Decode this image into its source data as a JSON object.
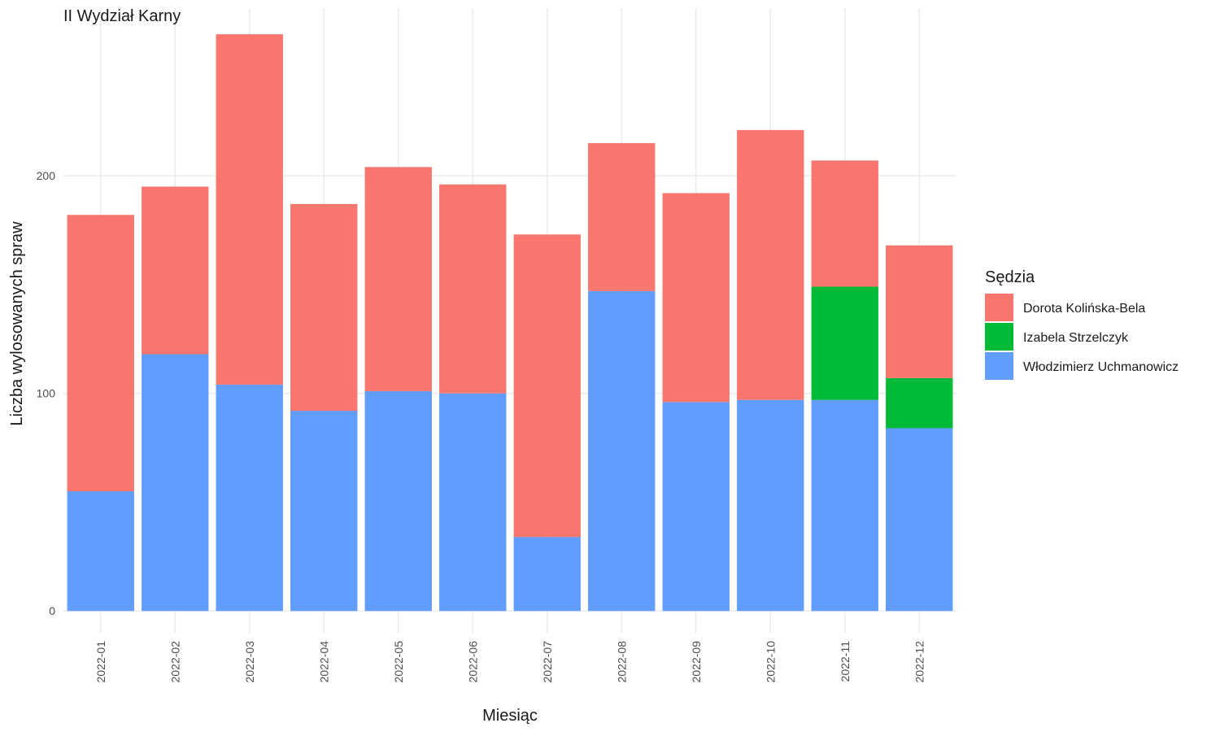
{
  "chart_data": {
    "type": "bar",
    "stacked": true,
    "title": "II Wydział Karny",
    "xlabel": "Miesiąc",
    "ylabel": "Liczba wylosowanych spraw",
    "ylim": [
      -10,
      277
    ],
    "yticks": [
      0,
      100,
      200
    ],
    "grid": true,
    "legend_title": "Sędzia",
    "legend_position": "right",
    "categories": [
      "2022-01",
      "2022-02",
      "2022-03",
      "2022-04",
      "2022-05",
      "2022-06",
      "2022-07",
      "2022-08",
      "2022-09",
      "2022-10",
      "2022-11",
      "2022-12"
    ],
    "series": [
      {
        "name": "Dorota Kolińska-Bela",
        "color": "#F8766D",
        "values": [
          127,
          77,
          161,
          95,
          103,
          96,
          139,
          68,
          96,
          124,
          58,
          61
        ]
      },
      {
        "name": "Izabela Strzelczyk",
        "color": "#00BA38",
        "values": [
          0,
          0,
          0,
          0,
          0,
          0,
          0,
          0,
          0,
          0,
          52,
          23
        ]
      },
      {
        "name": "Włodzimierz Uchmanowicz",
        "color": "#619CFF",
        "values": [
          55,
          118,
          104,
          92,
          101,
          100,
          34,
          147,
          96,
          97,
          97,
          84
        ]
      }
    ],
    "stack_order_bottom_to_top": [
      "Włodzimierz Uchmanowicz",
      "Izabela Strzelczyk",
      "Dorota Kolińska-Bela"
    ],
    "legend_order": [
      "Dorota Kolińska-Bela",
      "Izabela Strzelczyk",
      "Włodzimierz Uchmanowicz"
    ]
  }
}
